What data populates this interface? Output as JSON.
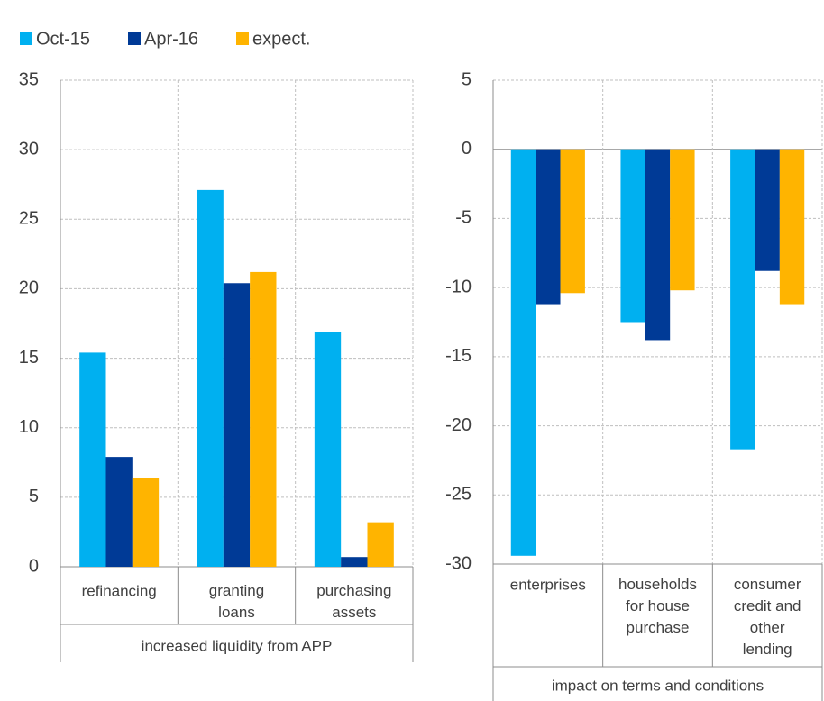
{
  "chart_data": [
    {
      "type": "bar",
      "xlabel": "increased liquidity from APP",
      "categories": [
        "refinancing",
        "granting\nloans",
        "purchasing\nassets"
      ],
      "series": [
        {
          "name": "Oct-15",
          "color": "#00b0f0",
          "values": [
            15.4,
            27.1,
            16.9
          ]
        },
        {
          "name": "Apr-16",
          "color": "#003a96",
          "values": [
            7.9,
            20.4,
            0.7
          ]
        },
        {
          "name": "expect.",
          "color": "#ffb400",
          "values": [
            6.4,
            21.2,
            3.2
          ]
        }
      ],
      "ylim": [
        0,
        35
      ],
      "yticks": [
        0,
        5,
        10,
        15,
        20,
        25,
        30,
        35
      ],
      "grid": true
    },
    {
      "type": "bar",
      "xlabel": "impact on terms and conditions",
      "categories": [
        "enterprises",
        "households\nfor house\npurchase",
        "consumer\ncredit and\nother\nlending"
      ],
      "series": [
        {
          "color": "#00b0f0",
          "values": [
            -29.4,
            -12.5,
            -21.7
          ]
        },
        {
          "color": "#003a96",
          "values": [
            -11.2,
            -13.8,
            -8.8
          ]
        },
        {
          "color": "#ffb400",
          "values": [
            -10.4,
            -10.2,
            -11.2
          ]
        }
      ],
      "ylim": [
        -30,
        5
      ],
      "yticks": [
        -30,
        -25,
        -20,
        -15,
        -10,
        -5,
        0,
        5
      ],
      "grid": true
    }
  ]
}
